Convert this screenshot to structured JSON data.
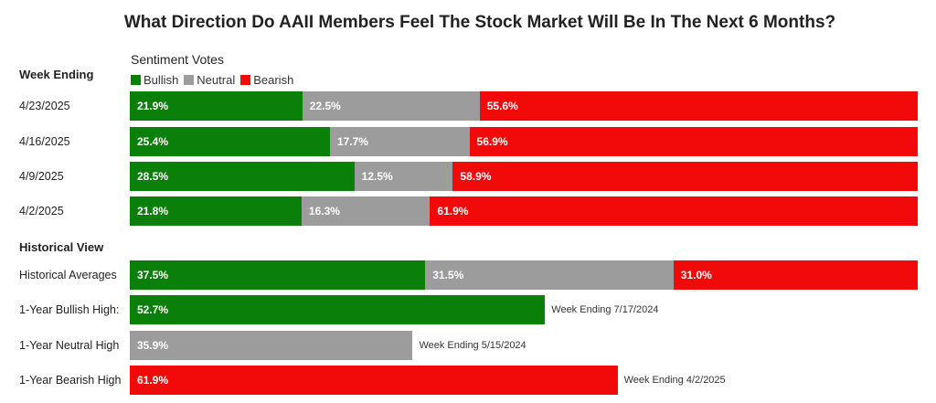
{
  "chart_data": {
    "type": "bar",
    "title": "What Direction Do AAII Members Feel The Stock Market Will Be In The Next 6 Months?",
    "legend": {
      "title": "Sentiment Votes",
      "placement": "top-left",
      "items": [
        {
          "name": "Bullish",
          "color": "#0a7f0a"
        },
        {
          "name": "Neutral",
          "color": "#9c9c9c"
        },
        {
          "name": "Bearish",
          "color": "#f20a0a"
        }
      ]
    },
    "weekly": {
      "heading": "Week Ending",
      "rows": [
        {
          "label": "4/23/2025",
          "bullish": 21.9,
          "neutral": 22.5,
          "bearish": 55.6,
          "bullish_text": "21.9%",
          "neutral_text": "22.5%",
          "bearish_text": "55.6%"
        },
        {
          "label": "4/16/2025",
          "bullish": 25.4,
          "neutral": 17.7,
          "bearish": 56.9,
          "bullish_text": "25.4%",
          "neutral_text": "17.7%",
          "bearish_text": "56.9%"
        },
        {
          "label": "4/9/2025",
          "bullish": 28.5,
          "neutral": 12.5,
          "bearish": 58.9,
          "bullish_text": "28.5%",
          "neutral_text": "12.5%",
          "bearish_text": "58.9%"
        },
        {
          "label": "4/2/2025",
          "bullish": 21.8,
          "neutral": 16.3,
          "bearish": 61.9,
          "bullish_text": "21.8%",
          "neutral_text": "16.3%",
          "bearish_text": "61.9%"
        }
      ]
    },
    "historical": {
      "heading": "Historical View",
      "averages": {
        "label": "Historical Averages",
        "bullish": 37.5,
        "neutral": 31.5,
        "bearish": 31.0,
        "bullish_text": "37.5%",
        "neutral_text": "31.5%",
        "bearish_text": "31.0%"
      },
      "highs": [
        {
          "label": "1-Year Bullish High:",
          "series": "bullish",
          "value": 52.7,
          "value_text": "52.7%",
          "note": "Week Ending 7/17/2024"
        },
        {
          "label": "1-Year Neutral High",
          "series": "neutral",
          "value": 35.9,
          "value_text": "35.9%",
          "note": "Week Ending 5/15/2024"
        },
        {
          "label": "1-Year Bearish High",
          "series": "bearish",
          "value": 61.9,
          "value_text": "61.9%",
          "note": "Week Ending 4/2/2025"
        }
      ]
    },
    "xlim": [
      0,
      100
    ]
  }
}
